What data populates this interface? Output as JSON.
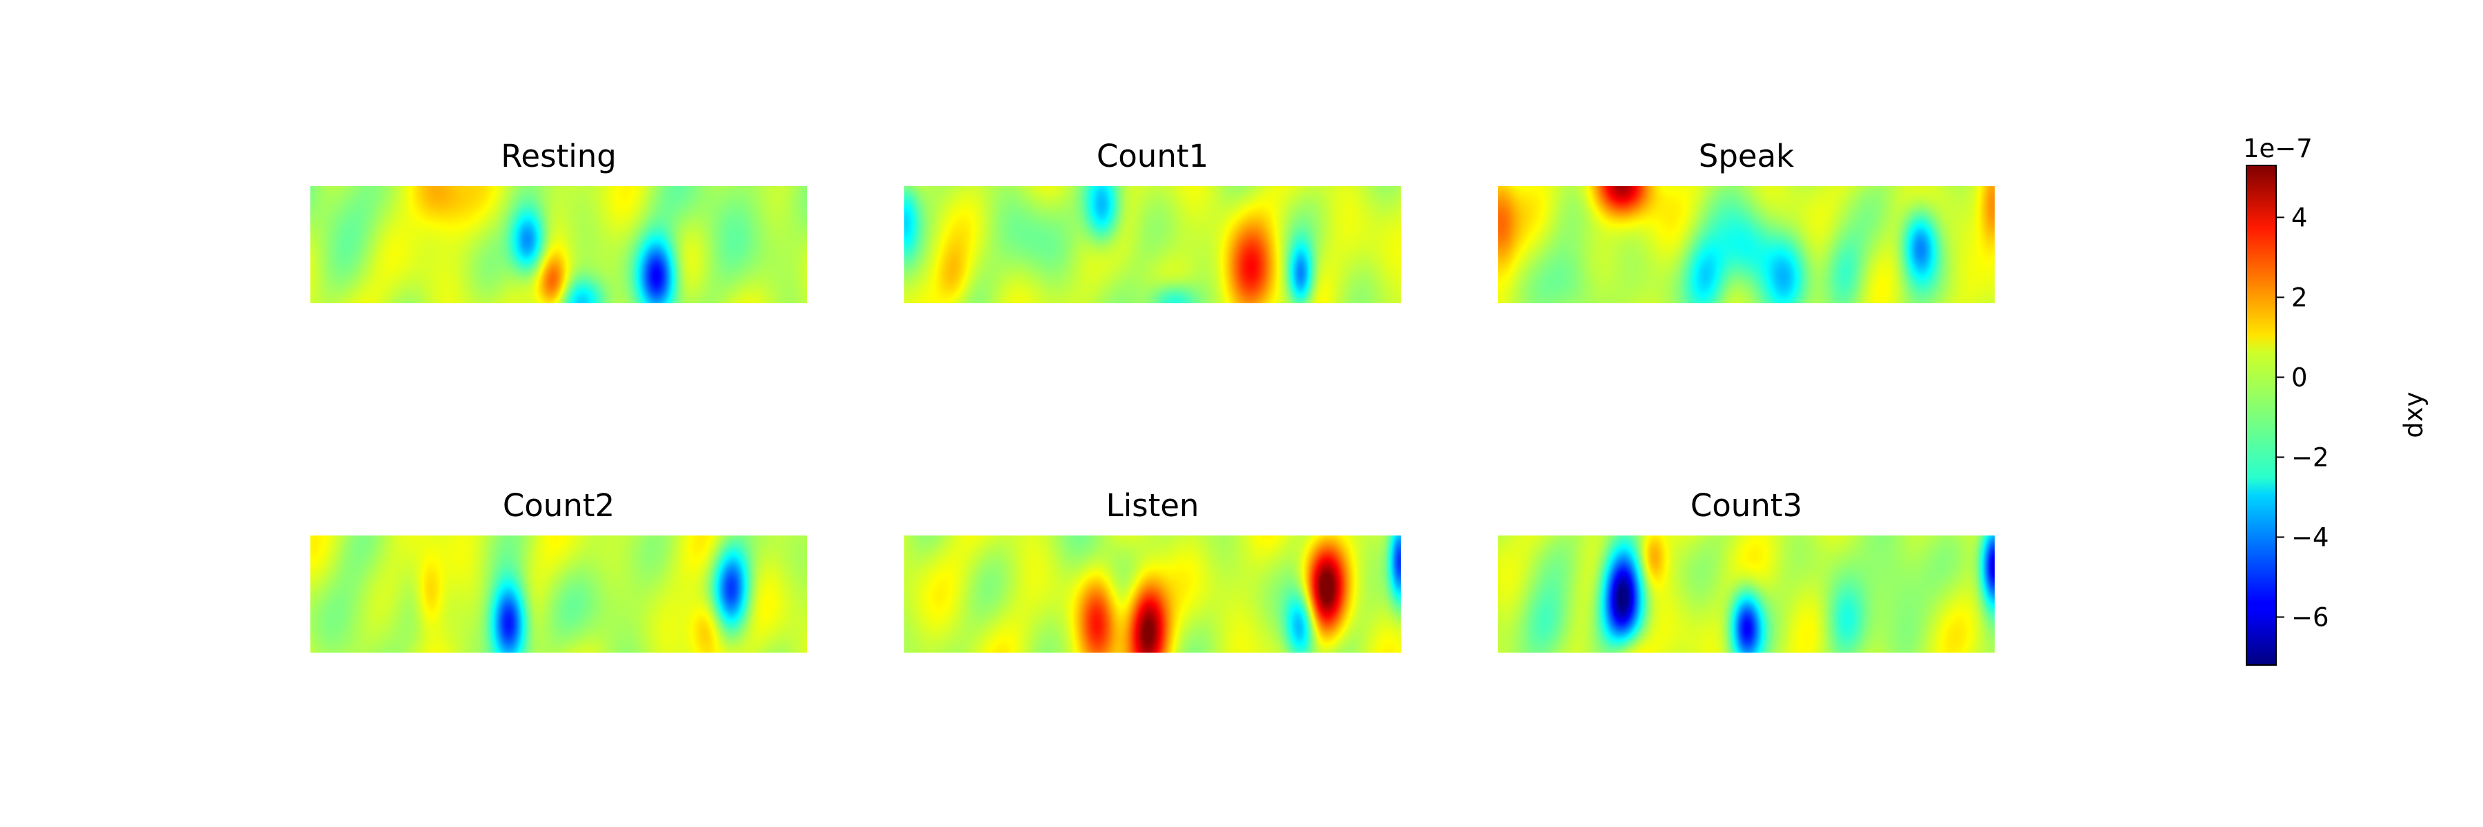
{
  "chart_data": {
    "type": "heatmap",
    "colormap": "jet",
    "vmin": -7.2,
    "vmax": 5.3,
    "panels": [
      {
        "title": "Resting",
        "blobs": [
          {
            "x": 0.25,
            "y": 0.05,
            "v": 2.2,
            "sx": 0.04,
            "sy": 0.22
          },
          {
            "x": 0.44,
            "y": 0.48,
            "v": -4.3,
            "sx": 0.025,
            "sy": 0.2
          },
          {
            "x": 0.49,
            "y": 0.85,
            "v": 2.8,
            "sx": 0.022,
            "sy": 0.18
          },
          {
            "x": 0.55,
            "y": 1.0,
            "v": -3.2,
            "sx": 0.035,
            "sy": 0.15
          },
          {
            "x": 0.7,
            "y": 0.78,
            "v": -5.6,
            "sx": 0.027,
            "sy": 0.23
          },
          {
            "x": 0.05,
            "y": 0.1,
            "v": -1.2,
            "sx": 0.08,
            "sy": 0.3
          },
          {
            "x": 0.85,
            "y": 0.2,
            "v": -0.9,
            "sx": 0.1,
            "sy": 0.4
          }
        ]
      },
      {
        "title": "Count1",
        "blobs": [
          {
            "x": 0.0,
            "y": 0.25,
            "v": -2.5,
            "sx": 0.02,
            "sy": 0.25
          },
          {
            "x": 0.4,
            "y": 0.2,
            "v": -3.6,
            "sx": 0.025,
            "sy": 0.22
          },
          {
            "x": 0.7,
            "y": 0.75,
            "v": 3.3,
            "sx": 0.035,
            "sy": 0.28
          },
          {
            "x": 0.8,
            "y": 0.78,
            "v": -4.0,
            "sx": 0.018,
            "sy": 0.2
          },
          {
            "x": 0.54,
            "y": 1.0,
            "v": -2.8,
            "sx": 0.035,
            "sy": 0.12
          },
          {
            "x": 0.1,
            "y": 0.8,
            "v": 1.2,
            "sx": 0.025,
            "sy": 0.2
          },
          {
            "x": 0.25,
            "y": 0.45,
            "v": -1.0,
            "sx": 0.05,
            "sy": 0.3
          }
        ]
      },
      {
        "title": "Speak",
        "blobs": [
          {
            "x": 0.25,
            "y": 0.0,
            "v": 4.6,
            "sx": 0.04,
            "sy": 0.18
          },
          {
            "x": 0.0,
            "y": 0.3,
            "v": 2.5,
            "sx": 0.025,
            "sy": 0.3
          },
          {
            "x": 1.0,
            "y": 0.2,
            "v": 2.2,
            "sx": 0.02,
            "sy": 0.25
          },
          {
            "x": 0.85,
            "y": 0.5,
            "v": -4.0,
            "sx": 0.025,
            "sy": 0.22
          },
          {
            "x": 0.42,
            "y": 0.8,
            "v": -2.8,
            "sx": 0.03,
            "sy": 0.25
          },
          {
            "x": 0.5,
            "y": 0.55,
            "v": -2.6,
            "sx": 0.04,
            "sy": 0.25
          },
          {
            "x": 0.58,
            "y": 0.8,
            "v": -2.5,
            "sx": 0.03,
            "sy": 0.25
          },
          {
            "x": 0.7,
            "y": 0.75,
            "v": -1.8,
            "sx": 0.03,
            "sy": 0.25
          },
          {
            "x": 0.16,
            "y": 0.85,
            "v": -1.5,
            "sx": 0.04,
            "sy": 0.25
          }
        ]
      },
      {
        "title": "Count2",
        "blobs": [
          {
            "x": 0.4,
            "y": 0.75,
            "v": -6.0,
            "sx": 0.025,
            "sy": 0.25
          },
          {
            "x": 0.85,
            "y": 0.45,
            "v": -4.6,
            "sx": 0.025,
            "sy": 0.25
          },
          {
            "x": 0.8,
            "y": 0.8,
            "v": 2.0,
            "sx": 0.025,
            "sy": 0.2
          },
          {
            "x": 0.24,
            "y": 0.5,
            "v": 1.6,
            "sx": 0.02,
            "sy": 0.22
          },
          {
            "x": 0.1,
            "y": 0.7,
            "v": -1.0,
            "sx": 0.05,
            "sy": 0.3
          },
          {
            "x": 0.6,
            "y": 0.6,
            "v": -0.8,
            "sx": 0.06,
            "sy": 0.3
          }
        ]
      },
      {
        "title": "Listen",
        "blobs": [
          {
            "x": 0.39,
            "y": 0.75,
            "v": 3.4,
            "sx": 0.028,
            "sy": 0.3
          },
          {
            "x": 0.49,
            "y": 0.78,
            "v": 5.3,
            "sx": 0.028,
            "sy": 0.3
          },
          {
            "x": 0.85,
            "y": 0.45,
            "v": 5.0,
            "sx": 0.028,
            "sy": 0.28
          },
          {
            "x": 0.8,
            "y": 0.78,
            "v": -3.8,
            "sx": 0.022,
            "sy": 0.22
          },
          {
            "x": 1.0,
            "y": 0.2,
            "v": -5.0,
            "sx": 0.015,
            "sy": 0.25
          },
          {
            "x": 0.4,
            "y": 0.2,
            "v": -1.0,
            "sx": 0.05,
            "sy": 0.3
          }
        ]
      },
      {
        "title": "Count3",
        "blobs": [
          {
            "x": 0.25,
            "y": 0.5,
            "v": -7.2,
            "sx": 0.028,
            "sy": 0.3
          },
          {
            "x": 0.31,
            "y": 0.18,
            "v": 2.0,
            "sx": 0.02,
            "sy": 0.18
          },
          {
            "x": 0.26,
            "y": 1.0,
            "v": 1.8,
            "sx": 0.03,
            "sy": 0.15
          },
          {
            "x": 0.5,
            "y": 0.78,
            "v": -5.3,
            "sx": 0.022,
            "sy": 0.22
          },
          {
            "x": 1.0,
            "y": 0.25,
            "v": -6.0,
            "sx": 0.018,
            "sy": 0.25
          },
          {
            "x": 0.7,
            "y": 0.75,
            "v": -2.0,
            "sx": 0.03,
            "sy": 0.25
          },
          {
            "x": 0.8,
            "y": 0.3,
            "v": -1.5,
            "sx": 0.04,
            "sy": 0.3
          },
          {
            "x": 0.1,
            "y": 0.8,
            "v": -1.8,
            "sx": 0.04,
            "sy": 0.25
          }
        ]
      }
    ],
    "colorbar": {
      "label": "dxy",
      "exponent_label": "1e−7",
      "ticks": [
        4,
        2,
        0,
        -2,
        -4,
        -6
      ],
      "tick_labels": [
        "4",
        "2",
        "0",
        "−2",
        "−4",
        "−6"
      ]
    }
  }
}
